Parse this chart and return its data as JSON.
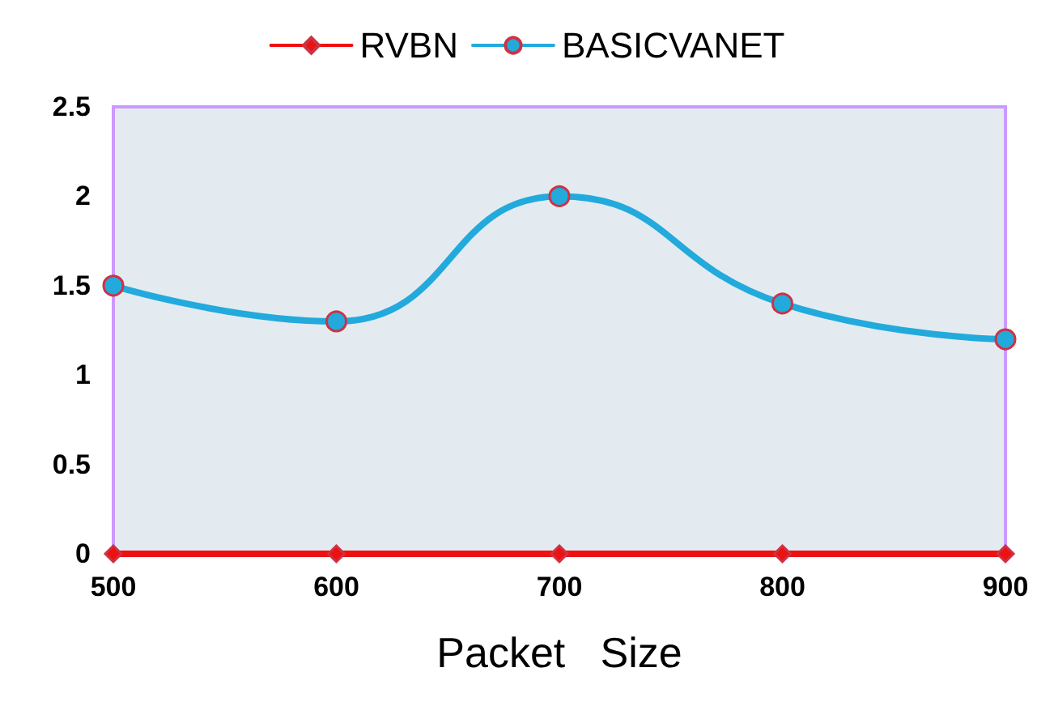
{
  "chart_data": {
    "type": "line",
    "xlabel": "Packet   Size",
    "x": [
      500,
      600,
      700,
      800,
      900
    ],
    "series": [
      {
        "name": "RVBN",
        "color": "#ee1111",
        "values": [
          0,
          0,
          0,
          0,
          0
        ],
        "marker": "diamond"
      },
      {
        "name": "BASICVANET",
        "color": "#22aadd",
        "values": [
          1.5,
          1.3,
          2.0,
          1.4,
          1.2
        ],
        "marker": "circle"
      }
    ],
    "xlim": [
      500,
      900
    ],
    "xticks": [
      500,
      600,
      700,
      800,
      900
    ],
    "ylim": [
      0,
      2.5
    ],
    "yticks": [
      0,
      0.5,
      1,
      1.5,
      2,
      2.5
    ],
    "grid": false,
    "legend": "top",
    "line_style": "solid"
  }
}
